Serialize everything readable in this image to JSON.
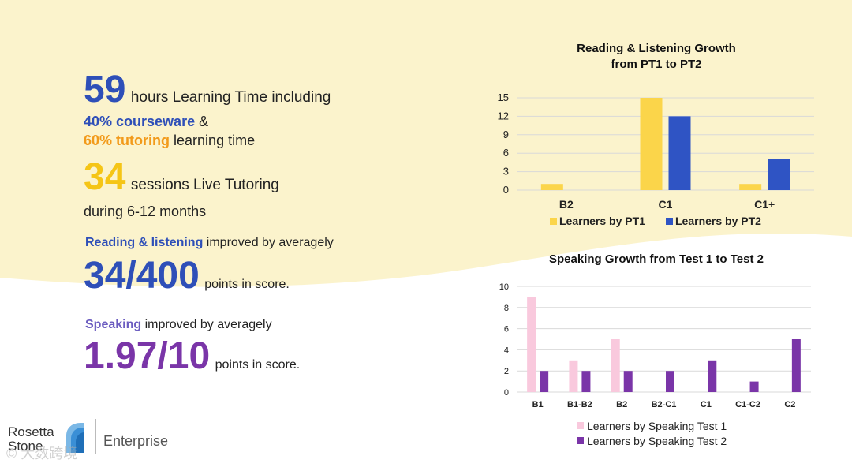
{
  "left": {
    "hours_value": "59",
    "hours_text": "hours Learning Time including",
    "courseware_pct": "40% courseware",
    "courseware_suffix": "&",
    "tutoring_pct": "60% tutoring",
    "tutoring_suffix": "learning time",
    "sessions_value": "34",
    "sessions_text": "sessions Live Tutoring",
    "duration_text": "during 6-12 months",
    "reading_label": "Reading & listening",
    "reading_suffix": "improved by averagely",
    "reading_score": "34/400",
    "reading_score_suffix": "points in score.",
    "speaking_label": "Speaking",
    "speaking_suffix": "improved by averagely",
    "speaking_score": "1.97/10",
    "speaking_score_suffix": "points in score."
  },
  "logo": {
    "line1": "Rosetta",
    "line2": "Stone",
    "enterprise": "Enterprise",
    "watermark": "大数跨境"
  },
  "colors": {
    "yellow_bg": "#fbf3cc",
    "pt1": "#fbd54a",
    "pt2": "#2f54c4",
    "test1": "#f9c9dd",
    "test2": "#7a35a8"
  },
  "chart_data": [
    {
      "type": "bar",
      "title": "Reading & Listening Growth\nfrom PT1 to PT2",
      "title_lines": [
        "Reading & Listening Growth",
        "from PT1 to PT2"
      ],
      "categories": [
        "B2",
        "C1",
        "C1+"
      ],
      "series": [
        {
          "name": "Learners by PT1",
          "values": [
            1,
            15,
            1
          ]
        },
        {
          "name": "Learners by PT2",
          "values": [
            0,
            12,
            5
          ]
        }
      ],
      "yticks": [
        "0",
        "3",
        "6",
        "9",
        "12",
        "15"
      ],
      "ylim": [
        0,
        15
      ],
      "grid": true,
      "legend": "bottom"
    },
    {
      "type": "bar",
      "title": "Speaking Growth from Test 1 to Test 2",
      "categories": [
        "B1",
        "B1-B2",
        "B2",
        "B2-C1",
        "C1",
        "C1-C2",
        "C2"
      ],
      "series": [
        {
          "name": "Learners by Speaking Test 1",
          "values": [
            9,
            3,
            5,
            0,
            0,
            0,
            0
          ]
        },
        {
          "name": "Learners by Speaking Test 2",
          "values": [
            2,
            2,
            2,
            2,
            3,
            1,
            5
          ]
        }
      ],
      "yticks": [
        "0",
        "2",
        "4",
        "6",
        "8",
        "10"
      ],
      "ylim": [
        0,
        10
      ],
      "grid": true,
      "legend": "bottom"
    }
  ]
}
